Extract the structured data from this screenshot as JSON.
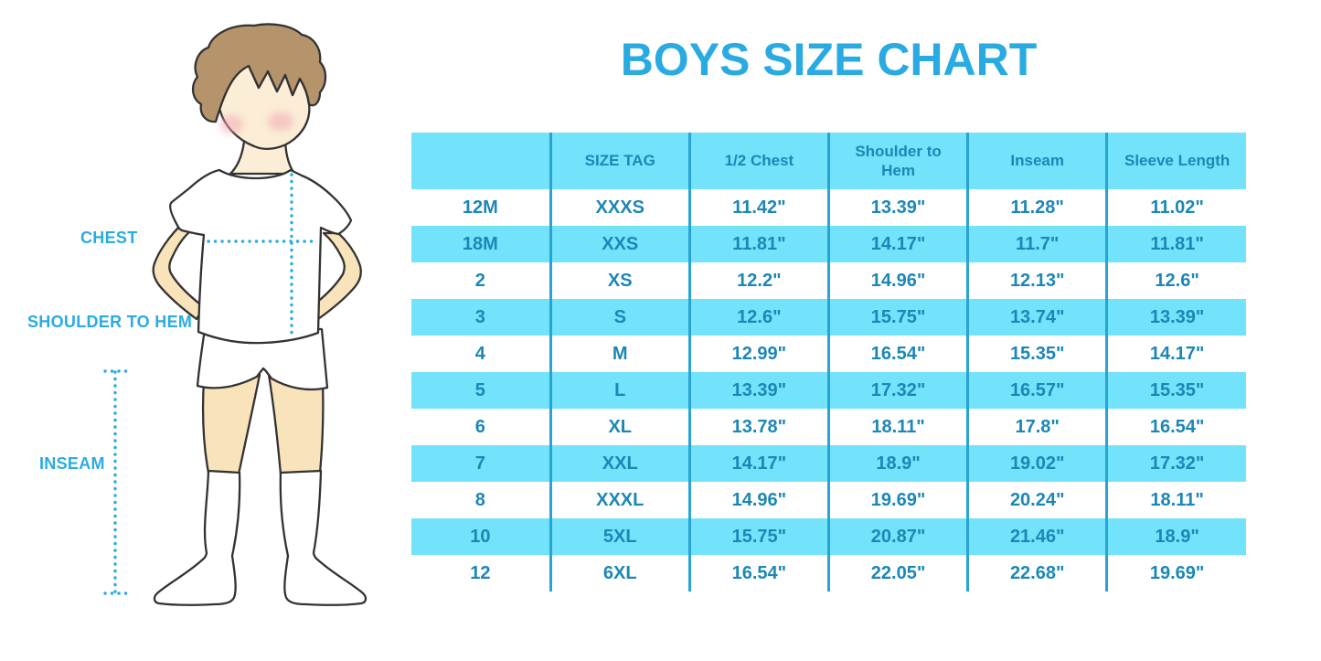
{
  "title": "BOYS SIZE CHART",
  "figure_labels": {
    "chest": "CHEST",
    "shoulder_to_hem": "SHOULDER TO HEM",
    "inseam": "INSEAM"
  },
  "chart_data": {
    "type": "table",
    "title": "BOYS SIZE CHART",
    "columns": [
      "",
      "SIZE TAG",
      "1/2 Chest",
      "Shoulder to Hem",
      "Inseam",
      "Sleeve Length"
    ],
    "rows": [
      [
        "12M",
        "XXXS",
        "11.42\"",
        "13.39\"",
        "11.28\"",
        "11.02\""
      ],
      [
        "18M",
        "XXS",
        "11.81\"",
        "14.17\"",
        "11.7\"",
        "11.81\""
      ],
      [
        "2",
        "XS",
        "12.2\"",
        "14.96\"",
        "12.13\"",
        "12.6\""
      ],
      [
        "3",
        "S",
        "12.6\"",
        "15.75\"",
        "13.74\"",
        "13.39\""
      ],
      [
        "4",
        "M",
        "12.99\"",
        "16.54\"",
        "15.35\"",
        "14.17\""
      ],
      [
        "5",
        "L",
        "13.39\"",
        "17.32\"",
        "16.57\"",
        "15.35\""
      ],
      [
        "6",
        "XL",
        "13.78\"",
        "18.11\"",
        "17.8\"",
        "16.54\""
      ],
      [
        "7",
        "XXL",
        "14.17\"",
        "18.9\"",
        "19.02\"",
        "17.32\""
      ],
      [
        "8",
        "XXXL",
        "14.96\"",
        "19.69\"",
        "20.24\"",
        "18.11\""
      ],
      [
        "10",
        "5XL",
        "15.75\"",
        "20.87\"",
        "21.46\"",
        "18.9\""
      ],
      [
        "12",
        "6XL",
        "16.54\"",
        "22.05\"",
        "22.68\"",
        "19.69\""
      ]
    ],
    "row_striping": "alternating white / light cyan, header cyan",
    "legend_position": "none",
    "grid": "vertical column dividers only"
  },
  "colors": {
    "accent_blue": "#29ABE2",
    "table_text": "#1B87B6",
    "stripe_cyan": "#73E2FB",
    "column_divider": "#27A4D2",
    "hair_brown": "#B5946C",
    "skin_light": "#FBEDD6",
    "skin_limb": "#F9E3BB",
    "cheek_pink": "#F2A7B4"
  }
}
